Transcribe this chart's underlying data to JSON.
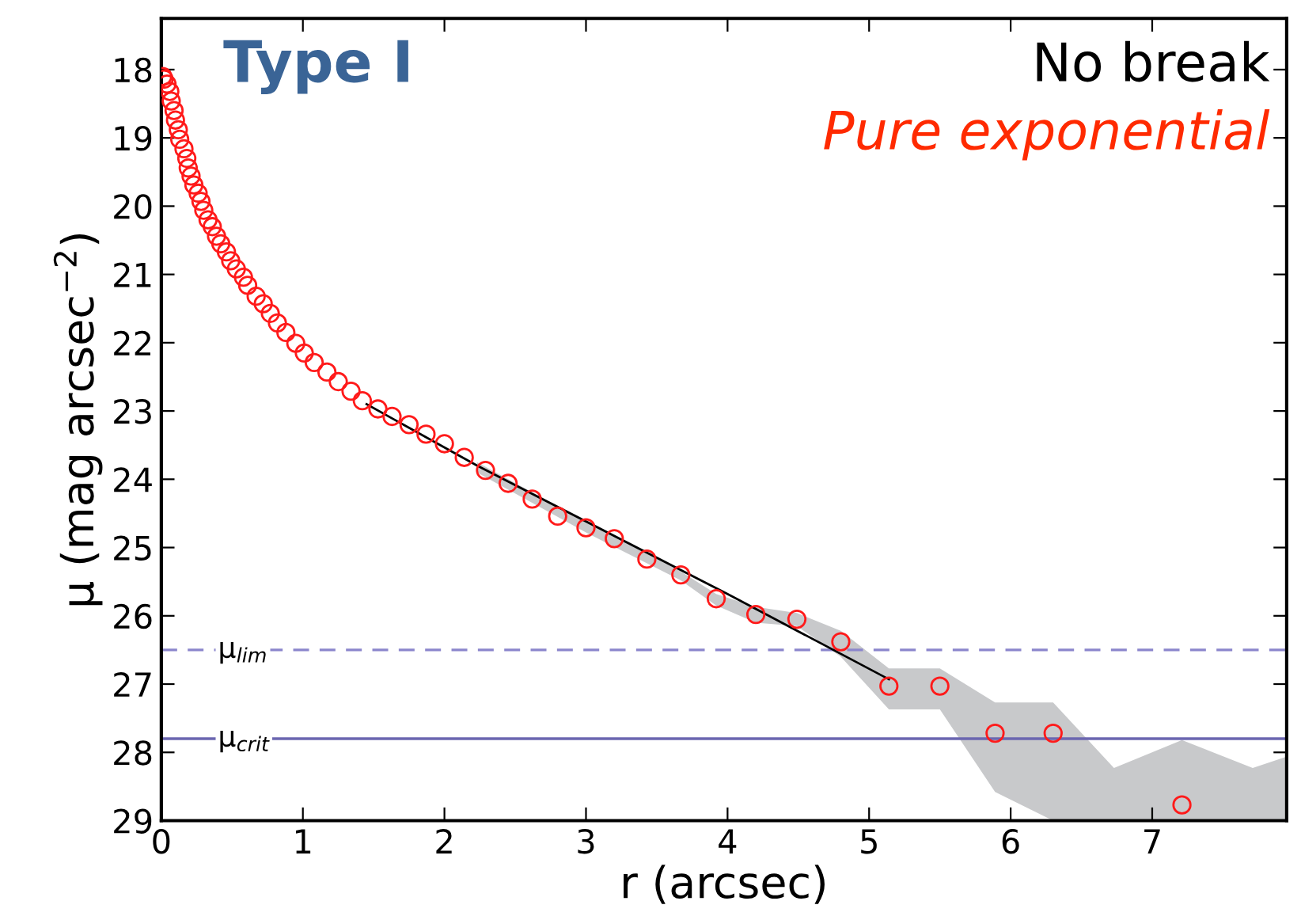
{
  "chart_data": {
    "type": "scatter",
    "xlabel": "r (arcsec)",
    "ylabel": "μ (mag arcsec$^{−2}$)",
    "xlim": [
      0,
      7.95
    ],
    "ylim": [
      29,
      17.25
    ],
    "xticks": [
      0,
      1,
      2,
      3,
      4,
      5,
      6,
      7
    ],
    "yticks": [
      18,
      19,
      20,
      21,
      22,
      23,
      24,
      25,
      26,
      27,
      28,
      29
    ],
    "grid": false,
    "marker": "circle",
    "annotations": [
      "Type I",
      "No break",
      "Pure exponential"
    ],
    "ref_lines": [
      {
        "axis": "y",
        "value": 26.5,
        "label": "μ$_{lim}$",
        "color": "#8b86cc",
        "line_style": "dashed"
      },
      {
        "axis": "y",
        "value": 27.8,
        "label": "μ$_{crit}$",
        "color": "#6b66b0",
        "line_style": "solid"
      }
    ],
    "series": [
      {
        "type": "line",
        "marker": "none",
        "color": "#c8c9cb",
        "x": [
          2.23,
          3.0,
          3.67,
          3.92,
          4.2,
          4.49,
          4.8,
          5.14,
          5.5,
          5.89,
          6.3,
          6.73,
          7.21,
          7.71,
          7.94
        ],
        "lower": [
          23.9,
          24.78,
          25.48,
          25.85,
          26.1,
          26.15,
          26.6,
          27.37,
          27.37,
          28.58,
          29,
          29,
          29,
          29,
          29
        ],
        "values": [
          null,
          null,
          null,
          null,
          null,
          null,
          null,
          null,
          null,
          null,
          null,
          null,
          null,
          null,
          null
        ],
        "upper": [
          23.75,
          24.62,
          25.35,
          25.68,
          25.87,
          25.96,
          26.22,
          26.77,
          26.77,
          27.27,
          27.27,
          28.23,
          27.82,
          28.23,
          28.07
        ]
      },
      {
        "type": "line",
        "marker": "none",
        "color": "#000000",
        "x": [
          1.45,
          2.23,
          4.0,
          5.14
        ],
        "values": [
          22.9,
          23.8,
          25.68,
          26.93
        ]
      },
      {
        "color": "#ff1a1a",
        "x": [
          0.01,
          0.02,
          0.04,
          0.06,
          0.07,
          0.09,
          0.1,
          0.12,
          0.13,
          0.16,
          0.18,
          0.19,
          0.21,
          0.23,
          0.26,
          0.28,
          0.3,
          0.33,
          0.36,
          0.39,
          0.42,
          0.46,
          0.49,
          0.53,
          0.58,
          0.61,
          0.67,
          0.72,
          0.77,
          0.82,
          0.88,
          0.95,
          1.01,
          1.08,
          1.17,
          1.25,
          1.34,
          1.42,
          1.53,
          1.63,
          1.75,
          1.87,
          2.0,
          2.14,
          2.29,
          2.45,
          2.62,
          2.8,
          3.0,
          3.2,
          3.43,
          3.67,
          3.92,
          4.2,
          4.49,
          4.8,
          5.14,
          5.5,
          5.89,
          6.3,
          7.21
        ],
        "values": [
          18.1,
          18.14,
          18.21,
          18.32,
          18.46,
          18.6,
          18.74,
          18.88,
          19.02,
          19.16,
          19.3,
          19.44,
          19.56,
          19.69,
          19.81,
          19.93,
          20.06,
          20.2,
          20.3,
          20.44,
          20.55,
          20.67,
          20.8,
          20.92,
          21.04,
          21.16,
          21.32,
          21.43,
          21.57,
          21.71,
          21.85,
          22.01,
          22.15,
          22.29,
          22.43,
          22.57,
          22.71,
          22.85,
          22.97,
          23.08,
          23.2,
          23.34,
          23.48,
          23.68,
          23.87,
          24.06,
          24.29,
          24.54,
          24.71,
          24.87,
          25.17,
          25.4,
          25.75,
          25.98,
          26.05,
          26.38,
          27.03,
          27.03,
          27.72,
          27.72,
          28.77
        ]
      }
    ]
  }
}
